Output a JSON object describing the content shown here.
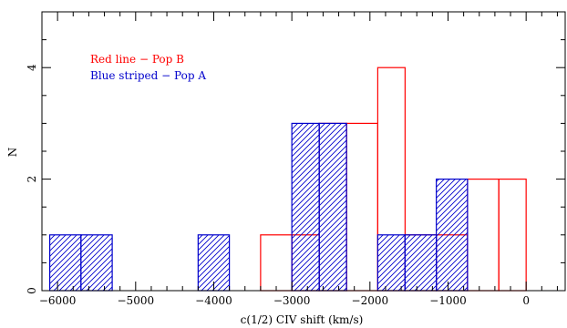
{
  "chart_data": {
    "type": "bar",
    "xlabel": "c(1/2) CIV shift (km/s)",
    "ylabel": "N",
    "xlim": [
      -6200,
      500
    ],
    "ylim": [
      0,
      5
    ],
    "xticks": [
      -6000,
      -5000,
      -4000,
      -3000,
      -2000,
      -1000,
      0
    ],
    "xtick_labels": [
      "−6000",
      "−5000",
      "−4000",
      "−3000",
      "−2000",
      "−1000",
      "0"
    ],
    "yticks": [
      0,
      2,
      4
    ],
    "ytick_labels": [
      "0",
      "2",
      "4"
    ],
    "grid": false,
    "legend": [
      {
        "text": "Red line − Pop B",
        "color": "#ff0000"
      },
      {
        "text": "Blue striped − Pop A",
        "color": "#0000cc"
      }
    ],
    "bin_edges": [
      -6100,
      -5700,
      -5300,
      -4900,
      -4500,
      -4200,
      -3800,
      -3400,
      -3000,
      -2650,
      -2300,
      -1900,
      -1550,
      -1150,
      -750,
      -350,
      0
    ],
    "series": [
      {
        "name": "Pop B",
        "style": "red-outline",
        "color": "#ff0000",
        "counts": [
          0,
          0,
          0,
          0,
          0,
          0,
          0,
          1,
          1,
          3,
          3,
          4,
          1,
          1,
          2,
          2
        ]
      },
      {
        "name": "Pop A",
        "style": "blue-hatched",
        "color": "#0000cc",
        "counts": [
          1,
          1,
          0,
          0,
          0,
          1,
          0,
          0,
          3,
          3,
          0,
          1,
          1,
          2,
          0,
          0
        ]
      }
    ]
  }
}
